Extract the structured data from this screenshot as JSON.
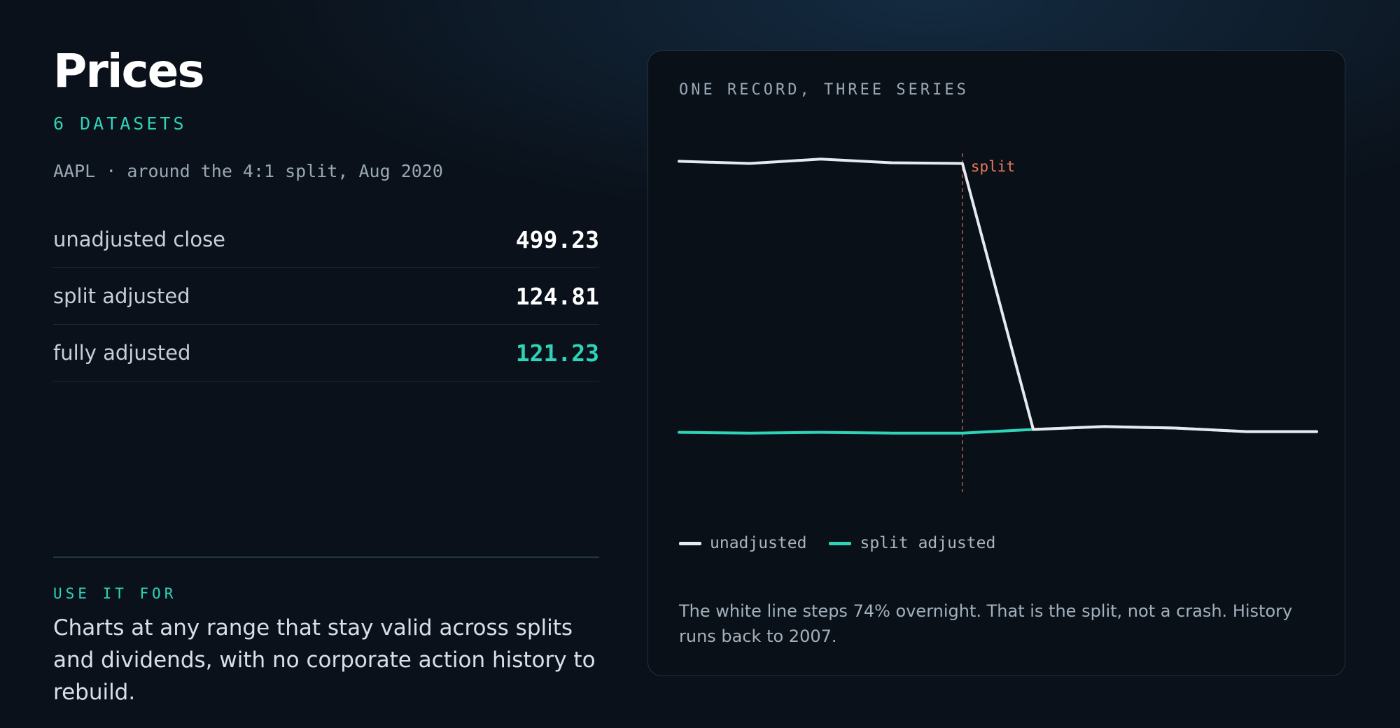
{
  "left": {
    "title": "Prices",
    "datasets_label": "6 DATASETS",
    "subtitle": "AAPL · around the 4:1 split, Aug 2020",
    "rows": [
      {
        "label": "unadjusted close",
        "value": "499.23"
      },
      {
        "label": "split adjusted",
        "value": "124.81"
      },
      {
        "label": "fully adjusted",
        "value": "121.23"
      }
    ],
    "use_it_for_label": "USE IT FOR",
    "use_it_for_text": "Charts at any range that stay valid across splits and dividends, with no corporate action history to rebuild."
  },
  "card": {
    "title": "ONE RECORD, THREE SERIES",
    "split_label": "split",
    "legend": [
      "unadjusted",
      "split adjusted"
    ],
    "caption": "The white line steps 74% overnight. That is the split, not a crash. History runs back to 2007."
  },
  "colors": {
    "background": "#0a111a",
    "accent": "#2fd3b8",
    "white_series": "#e6ebf0",
    "split_marker": "#e8785a"
  },
  "chart_data": {
    "type": "line",
    "title": "ONE RECORD, THREE SERIES",
    "x": [
      0,
      1,
      2,
      3,
      4,
      5,
      6,
      7,
      8,
      9
    ],
    "split_index": 4,
    "ylim": [
      110,
      520
    ],
    "series": [
      {
        "name": "unadjusted",
        "color": "#e6ebf0",
        "values": [
          503,
          500,
          506,
          501,
          500,
          129,
          133,
          131,
          126,
          126
        ]
      },
      {
        "name": "split adjusted",
        "color": "#2fd3b8",
        "values": [
          125,
          124,
          125,
          124,
          124,
          129,
          133,
          131,
          126,
          126
        ]
      }
    ],
    "annotations": [
      "split"
    ],
    "legend_position": "bottom-left",
    "grid": false
  }
}
